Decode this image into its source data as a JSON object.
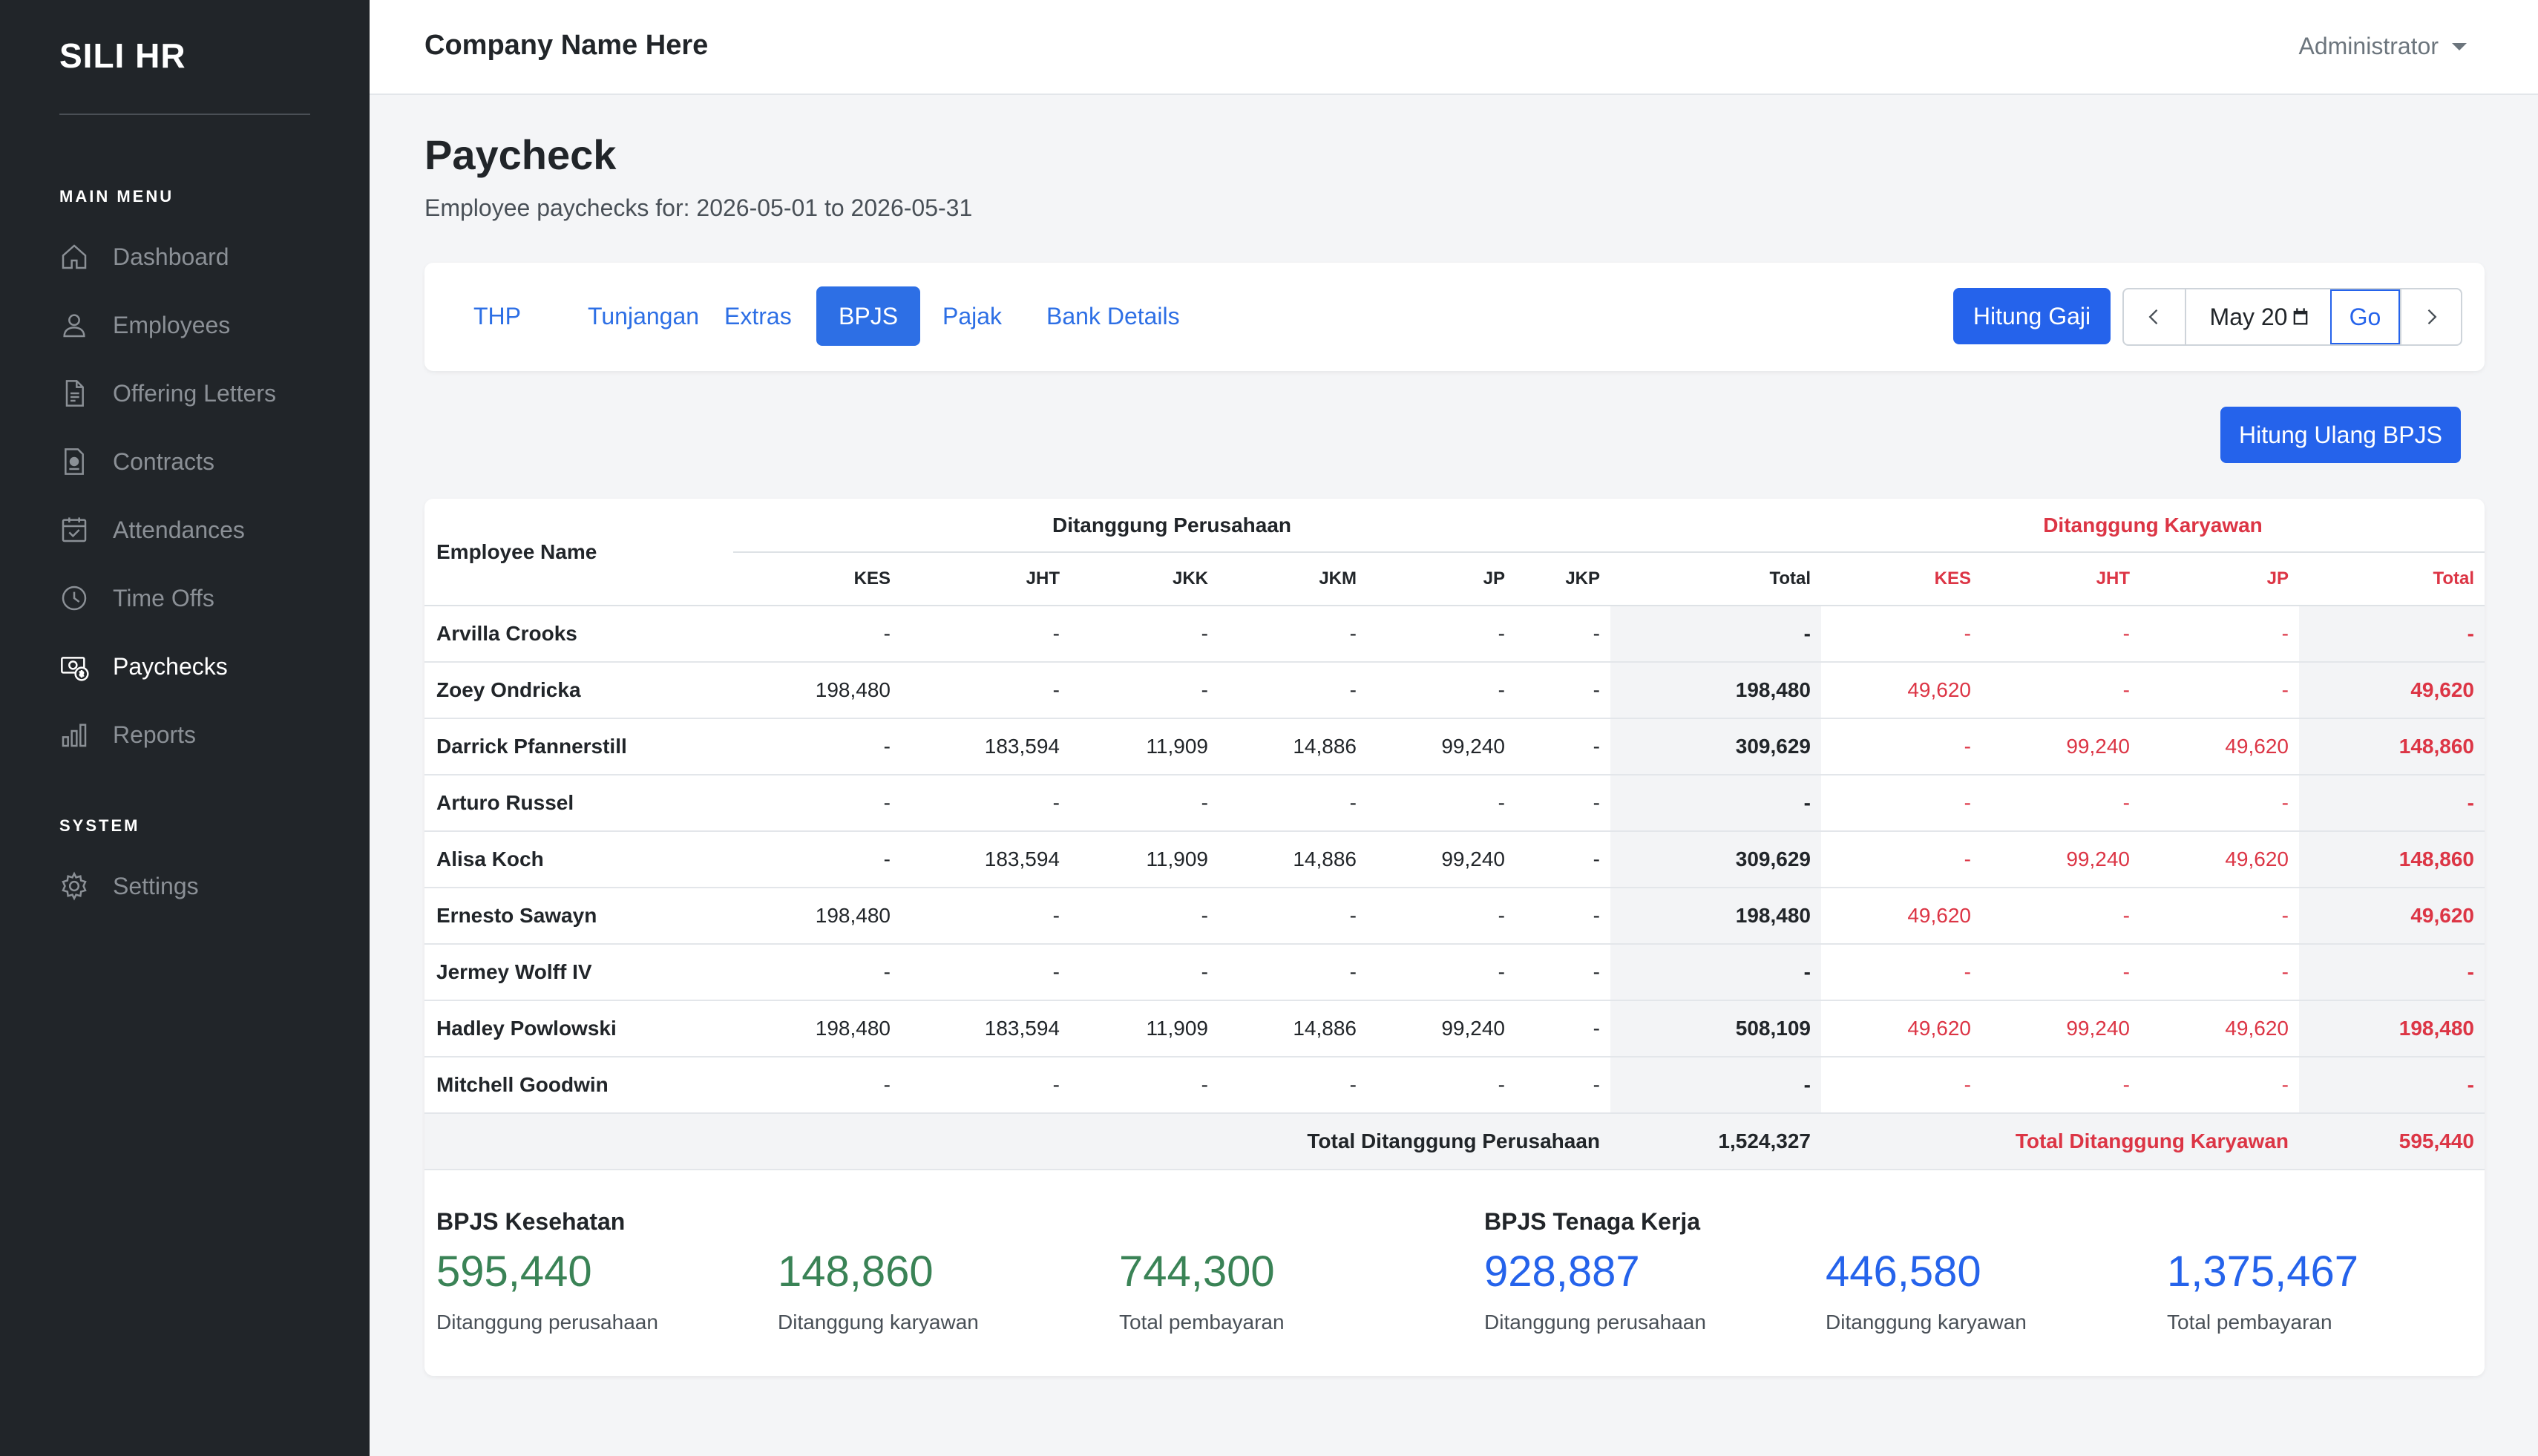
{
  "sidebar": {
    "brand": "SILI HR",
    "main_heading": "MAIN MENU",
    "system_heading": "SYSTEM",
    "items": [
      {
        "label": "Dashboard",
        "icon": "home-icon"
      },
      {
        "label": "Employees",
        "icon": "user-icon"
      },
      {
        "label": "Offering Letters",
        "icon": "file-icon"
      },
      {
        "label": "Contracts",
        "icon": "contract-icon"
      },
      {
        "label": "Attendances",
        "icon": "calendar-check-icon"
      },
      {
        "label": "Time Offs",
        "icon": "clock-icon"
      },
      {
        "label": "Paychecks",
        "icon": "money-icon",
        "active": true
      },
      {
        "label": "Reports",
        "icon": "bar-chart-icon"
      }
    ],
    "system_items": [
      {
        "label": "Settings",
        "icon": "gear-icon"
      }
    ]
  },
  "topbar": {
    "company": "Company Name Here",
    "user": "Administrator"
  },
  "page": {
    "title": "Paycheck",
    "subtitle": "Employee paychecks for: 2026-05-01 to 2026-05-31"
  },
  "tabs": [
    "THP",
    "Tunjangan",
    "Extras",
    "BPJS",
    "Pajak",
    "Bank Details"
  ],
  "active_tab": "BPJS",
  "controls": {
    "hitung_gaji": "Hitung Gaji",
    "month_value": "May 20",
    "go": "Go",
    "hitung_ulang": "Hitung Ulang BPJS"
  },
  "table": {
    "employee_header": "Employee Name",
    "company_group": "Ditanggung Perusahaan",
    "employee_group": "Ditanggung Karyawan",
    "company_cols": [
      "KES",
      "JHT",
      "JKK",
      "JKM",
      "JP",
      "JKP",
      "Total"
    ],
    "employee_cols": [
      "KES",
      "JHT",
      "JP",
      "Total"
    ],
    "rows": [
      {
        "name": "Arvilla Crooks",
        "c": [
          "-",
          "-",
          "-",
          "-",
          "-",
          "-",
          "-"
        ],
        "e": [
          "-",
          "-",
          "-",
          "-"
        ]
      },
      {
        "name": "Zoey Ondricka",
        "c": [
          "198,480",
          "-",
          "-",
          "-",
          "-",
          "-",
          "198,480"
        ],
        "e": [
          "49,620",
          "-",
          "-",
          "49,620"
        ]
      },
      {
        "name": "Darrick Pfannerstill",
        "c": [
          "-",
          "183,594",
          "11,909",
          "14,886",
          "99,240",
          "-",
          "309,629"
        ],
        "e": [
          "-",
          "99,240",
          "49,620",
          "148,860"
        ]
      },
      {
        "name": "Arturo Russel",
        "c": [
          "-",
          "-",
          "-",
          "-",
          "-",
          "-",
          "-"
        ],
        "e": [
          "-",
          "-",
          "-",
          "-"
        ]
      },
      {
        "name": "Alisa Koch",
        "c": [
          "-",
          "183,594",
          "11,909",
          "14,886",
          "99,240",
          "-",
          "309,629"
        ],
        "e": [
          "-",
          "99,240",
          "49,620",
          "148,860"
        ]
      },
      {
        "name": "Ernesto Sawayn",
        "c": [
          "198,480",
          "-",
          "-",
          "-",
          "-",
          "-",
          "198,480"
        ],
        "e": [
          "49,620",
          "-",
          "-",
          "49,620"
        ]
      },
      {
        "name": "Jermey Wolff IV",
        "c": [
          "-",
          "-",
          "-",
          "-",
          "-",
          "-",
          "-"
        ],
        "e": [
          "-",
          "-",
          "-",
          "-"
        ]
      },
      {
        "name": "Hadley Powlowski",
        "c": [
          "198,480",
          "183,594",
          "11,909",
          "14,886",
          "99,240",
          "-",
          "508,109"
        ],
        "e": [
          "49,620",
          "99,240",
          "49,620",
          "198,480"
        ]
      },
      {
        "name": "Mitchell Goodwin",
        "c": [
          "-",
          "-",
          "-",
          "-",
          "-",
          "-",
          "-"
        ],
        "e": [
          "-",
          "-",
          "-",
          "-"
        ]
      }
    ],
    "footer": {
      "company_label": "Total Ditanggung Perusahaan",
      "company_total": "1,524,327",
      "employee_label": "Total Ditanggung Karyawan",
      "employee_total": "595,440"
    }
  },
  "summary": {
    "kesehatan": {
      "title": "BPJS Kesehatan",
      "perusahaan": "595,440",
      "karyawan": "148,860",
      "total": "744,300"
    },
    "tenaga_kerja": {
      "title": "BPJS Tenaga Kerja",
      "perusahaan": "928,887",
      "karyawan": "446,580",
      "total": "1,375,467"
    },
    "labels": {
      "perusahaan": "Ditanggung perusahaan",
      "karyawan": "Ditanggung karyawan",
      "total": "Total pembayaran"
    }
  },
  "colors": {
    "sidebar_bg": "#212529",
    "primary": "#2563eb",
    "danger": "#dc3545",
    "success": "#3a8356"
  }
}
